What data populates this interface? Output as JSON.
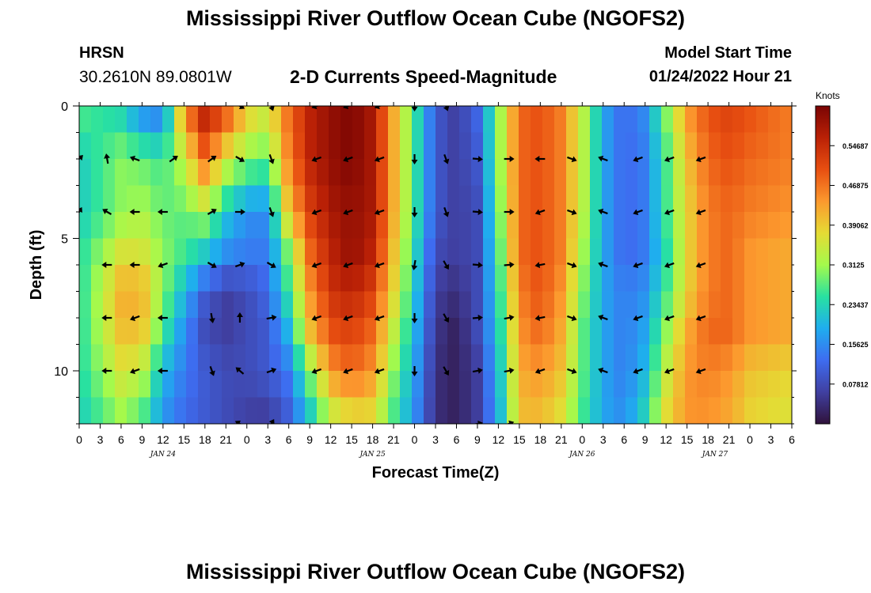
{
  "header": {
    "title": "Mississippi River Outflow Ocean Cube (NGOFS2)",
    "station": "HRSN",
    "coords": "30.2610N  89.0801W",
    "subtitle": "2-D Currents Speed-Magnitude",
    "model_start_label": "Model Start Time",
    "model_start_value": "01/24/2022 Hour 21"
  },
  "footer": {
    "title": "Mississippi River Outflow Ocean Cube (NGOFS2)"
  },
  "chart_data": {
    "type": "heatmap",
    "xlabel": "Forecast Time(Z)",
    "ylabel": "Depth (ft)",
    "x_hours": [
      0,
      3,
      6,
      9,
      12,
      15,
      18,
      21,
      24,
      27,
      30,
      33,
      36,
      39,
      42,
      45,
      48,
      51,
      54,
      57,
      60,
      63,
      66,
      69,
      72,
      75,
      78,
      81,
      84,
      87,
      90,
      93,
      96,
      99,
      102
    ],
    "xtick_labels": [
      "0",
      "3",
      "6",
      "9",
      "12",
      "15",
      "18",
      "21",
      "0",
      "3",
      "6",
      "9",
      "12",
      "15",
      "18",
      "21",
      "0",
      "3",
      "6",
      "9",
      "12",
      "15",
      "18",
      "21",
      "0",
      "3",
      "6",
      "9",
      "12",
      "15",
      "18",
      "21",
      "0",
      "3",
      "6"
    ],
    "date_labels": [
      {
        "label": "JAN 24",
        "hour": 12
      },
      {
        "label": "JAN 25",
        "hour": 42
      },
      {
        "label": "JAN 26",
        "hour": 72
      },
      {
        "label": "JAN 27",
        "hour": 91
      }
    ],
    "y_range": [
      0,
      12
    ],
    "y_ticks": [
      0,
      5,
      10
    ],
    "x_range": [
      0,
      102
    ],
    "colorbar": {
      "unit": "Knots",
      "min": 0,
      "max": 0.625,
      "tick_values": [
        0.54687,
        0.46875,
        0.39062,
        0.3125,
        0.23437,
        0.15625,
        0.07812
      ],
      "tick_labels": [
        "0.54687",
        "0.46875",
        "0.39062",
        "0.3125",
        "0.23437",
        "0.15625",
        "0.07812"
      ]
    },
    "speed_profiles": [
      {
        "hour": 0,
        "speeds": [
          0.28,
          0.22,
          0.22,
          0.24,
          0.24,
          0.24,
          0.24,
          0.22
        ]
      },
      {
        "hour": 6,
        "speeds": [
          0.22,
          0.3,
          0.3,
          0.36,
          0.42,
          0.4,
          0.36,
          0.3
        ]
      },
      {
        "hour": 9,
        "speeds": [
          0.14,
          0.28,
          0.32,
          0.36,
          0.42,
          0.4,
          0.34,
          0.26
        ]
      },
      {
        "hour": 12,
        "speeds": [
          0.12,
          0.26,
          0.28,
          0.3,
          0.3,
          0.26,
          0.2,
          0.16
        ]
      },
      {
        "hour": 15,
        "speeds": [
          0.46,
          0.34,
          0.28,
          0.26,
          0.2,
          0.16,
          0.14,
          0.12
        ]
      },
      {
        "hour": 18,
        "speeds": [
          0.58,
          0.48,
          0.32,
          0.22,
          0.1,
          0.08,
          0.1,
          0.1
        ]
      },
      {
        "hour": 21,
        "speeds": [
          0.52,
          0.36,
          0.22,
          0.16,
          0.06,
          0.06,
          0.08,
          0.08
        ]
      },
      {
        "hour": 24,
        "speeds": [
          0.4,
          0.3,
          0.16,
          0.14,
          0.08,
          0.08,
          0.08,
          0.06
        ]
      },
      {
        "hour": 27,
        "speeds": [
          0.36,
          0.28,
          0.16,
          0.14,
          0.12,
          0.1,
          0.1,
          0.05
        ]
      },
      {
        "hour": 30,
        "speeds": [
          0.48,
          0.46,
          0.4,
          0.3,
          0.26,
          0.2,
          0.14,
          0.1
        ]
      },
      {
        "hour": 33,
        "speeds": [
          0.56,
          0.56,
          0.52,
          0.48,
          0.44,
          0.4,
          0.3,
          0.2
        ]
      },
      {
        "hour": 36,
        "speeds": [
          0.6,
          0.6,
          0.58,
          0.56,
          0.54,
          0.5,
          0.44,
          0.32
        ]
      },
      {
        "hour": 39,
        "speeds": [
          0.62,
          0.62,
          0.6,
          0.6,
          0.56,
          0.52,
          0.48,
          0.36
        ]
      },
      {
        "hour": 42,
        "speeds": [
          0.58,
          0.58,
          0.58,
          0.56,
          0.52,
          0.48,
          0.44,
          0.36
        ]
      },
      {
        "hour": 45,
        "speeds": [
          0.42,
          0.42,
          0.42,
          0.4,
          0.38,
          0.34,
          0.3,
          0.26
        ]
      },
      {
        "hour": 48,
        "speeds": [
          0.26,
          0.26,
          0.26,
          0.24,
          0.22,
          0.2,
          0.18,
          0.16
        ]
      },
      {
        "hour": 51,
        "speeds": [
          0.1,
          0.1,
          0.1,
          0.08,
          0.06,
          0.05,
          0.04,
          0.04
        ]
      },
      {
        "hour": 54,
        "speeds": [
          0.06,
          0.06,
          0.06,
          0.06,
          0.04,
          0.02,
          0.02,
          0.02
        ]
      },
      {
        "hour": 57,
        "speeds": [
          0.12,
          0.1,
          0.08,
          0.08,
          0.08,
          0.08,
          0.06,
          0.06
        ]
      },
      {
        "hour": 60,
        "speeds": [
          0.3,
          0.3,
          0.28,
          0.26,
          0.24,
          0.22,
          0.2,
          0.18
        ]
      },
      {
        "hour": 63,
        "speeds": [
          0.48,
          0.48,
          0.48,
          0.48,
          0.46,
          0.44,
          0.42,
          0.4
        ]
      },
      {
        "hour": 66,
        "speeds": [
          0.5,
          0.5,
          0.5,
          0.5,
          0.5,
          0.48,
          0.44,
          0.4
        ]
      },
      {
        "hour": 69,
        "speeds": [
          0.46,
          0.46,
          0.46,
          0.46,
          0.44,
          0.42,
          0.4,
          0.36
        ]
      },
      {
        "hour": 72,
        "speeds": [
          0.34,
          0.34,
          0.34,
          0.32,
          0.3,
          0.28,
          0.28,
          0.26
        ]
      },
      {
        "hour": 75,
        "speeds": [
          0.18,
          0.18,
          0.18,
          0.18,
          0.18,
          0.18,
          0.18,
          0.18
        ]
      },
      {
        "hour": 78,
        "speeds": [
          0.12,
          0.12,
          0.12,
          0.12,
          0.14,
          0.14,
          0.14,
          0.16
        ]
      },
      {
        "hour": 81,
        "speeds": [
          0.16,
          0.14,
          0.14,
          0.14,
          0.16,
          0.18,
          0.2,
          0.24
        ]
      },
      {
        "hour": 84,
        "speeds": [
          0.3,
          0.26,
          0.26,
          0.24,
          0.26,
          0.3,
          0.34,
          0.38
        ]
      },
      {
        "hour": 87,
        "speeds": [
          0.44,
          0.4,
          0.38,
          0.38,
          0.38,
          0.42,
          0.44,
          0.44
        ]
      },
      {
        "hour": 90,
        "speeds": [
          0.5,
          0.48,
          0.46,
          0.46,
          0.46,
          0.48,
          0.46,
          0.44
        ]
      },
      {
        "hour": 93,
        "speeds": [
          0.52,
          0.5,
          0.48,
          0.48,
          0.48,
          0.48,
          0.44,
          0.42
        ]
      },
      {
        "hour": 96,
        "speeds": [
          0.5,
          0.48,
          0.46,
          0.44,
          0.44,
          0.44,
          0.4,
          0.38
        ]
      },
      {
        "hour": 102,
        "speeds": [
          0.46,
          0.46,
          0.44,
          0.42,
          0.42,
          0.42,
          0.38,
          0.36
        ]
      }
    ],
    "profile_depths": [
      0,
      2,
      4,
      5.5,
      7,
      8.5,
      10,
      12
    ],
    "arrow_depths": [
      0,
      2,
      4,
      6,
      8,
      10,
      12
    ],
    "arrows": [
      {
        "hour": 0,
        "angles": [
          null,
          45,
          60,
          null,
          null,
          null,
          null
        ]
      },
      {
        "hour": 4,
        "angles": [
          null,
          100,
          150,
          180,
          180,
          180,
          null
        ]
      },
      {
        "hour": 8,
        "angles": [
          null,
          160,
          180,
          180,
          200,
          200,
          null
        ]
      },
      {
        "hour": 12,
        "angles": [
          null,
          null,
          180,
          200,
          180,
          180,
          null
        ]
      },
      {
        "hour": 13.5,
        "angles": [
          null,
          35,
          null,
          null,
          null,
          null,
          null
        ]
      },
      {
        "hour": 19,
        "angles": [
          null,
          35,
          30,
          330,
          280,
          290,
          null
        ]
      },
      {
        "hour": 23,
        "angles": [
          330,
          330,
          0,
          20,
          90,
          140,
          150
        ]
      },
      {
        "hour": 27.5,
        "angles": [
          290,
          290,
          290,
          330,
          10,
          20,
          60
        ]
      },
      {
        "hour": 34,
        "angles": [
          200,
          200,
          200,
          200,
          200,
          200,
          null
        ]
      },
      {
        "hour": 38.5,
        "angles": [
          200,
          200,
          200,
          200,
          200,
          200,
          null
        ]
      },
      {
        "hour": 43,
        "angles": [
          200,
          200,
          200,
          200,
          200,
          200,
          null
        ]
      },
      {
        "hour": 48,
        "angles": [
          270,
          270,
          270,
          260,
          270,
          270,
          null
        ]
      },
      {
        "hour": 52.5,
        "angles": [
          290,
          290,
          290,
          300,
          300,
          300,
          null
        ]
      },
      {
        "hour": 57,
        "angles": [
          null,
          355,
          355,
          355,
          5,
          10,
          10
        ]
      },
      {
        "hour": 61.5,
        "angles": [
          null,
          0,
          0,
          5,
          10,
          10,
          20
        ]
      },
      {
        "hour": 66,
        "angles": [
          null,
          180,
          200,
          190,
          190,
          200,
          null
        ]
      },
      {
        "hour": 70.5,
        "angles": [
          null,
          340,
          340,
          340,
          340,
          340,
          null
        ]
      },
      {
        "hour": 75,
        "angles": [
          null,
          160,
          160,
          160,
          160,
          160,
          null
        ]
      },
      {
        "hour": 80,
        "angles": [
          null,
          200,
          200,
          200,
          200,
          200,
          null
        ]
      },
      {
        "hour": 84.5,
        "angles": [
          null,
          200,
          200,
          200,
          200,
          200,
          null
        ]
      },
      {
        "hour": 89,
        "angles": [
          null,
          200,
          200,
          200,
          200,
          200,
          null
        ]
      }
    ]
  }
}
